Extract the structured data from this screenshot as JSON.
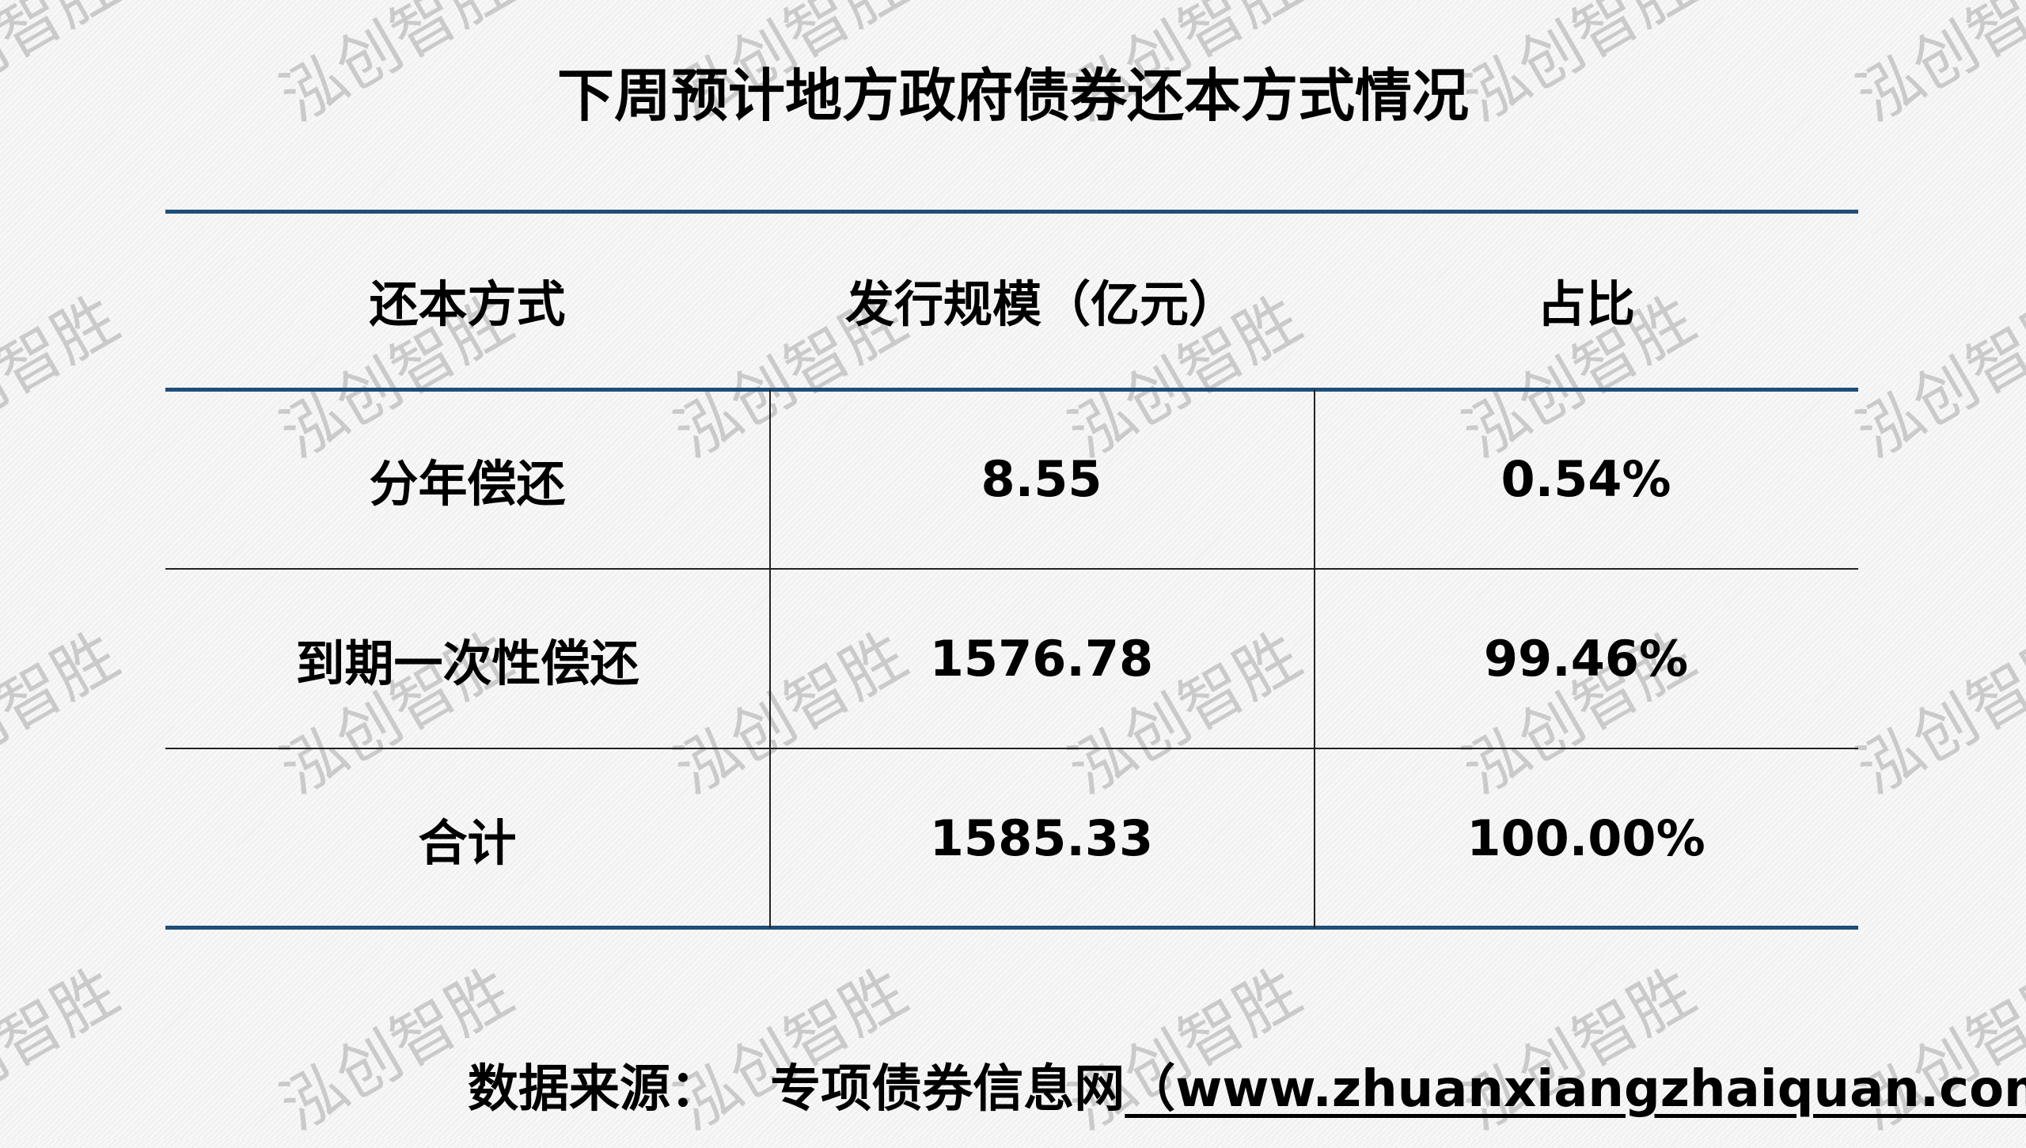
{
  "title": "下周预计地方政府债券还本方式情况",
  "watermark": "泓创智胜",
  "colors": {
    "rule": "#1f4e79",
    "text": "#000000"
  },
  "table": {
    "headers": [
      "还本方式",
      "发行规模（亿元）",
      "占比"
    ],
    "rows": [
      [
        "分年偿还",
        "8.55",
        "0.54%"
      ],
      [
        "到期一次性偿还",
        "1576.78",
        "99.46%"
      ],
      [
        "合计",
        "1585.33",
        "100.00%"
      ]
    ]
  },
  "footer": {
    "label": "数据来源：",
    "source": "专项债券信息网",
    "url": "（www.zhuanxiangzhaiquan.com）"
  }
}
